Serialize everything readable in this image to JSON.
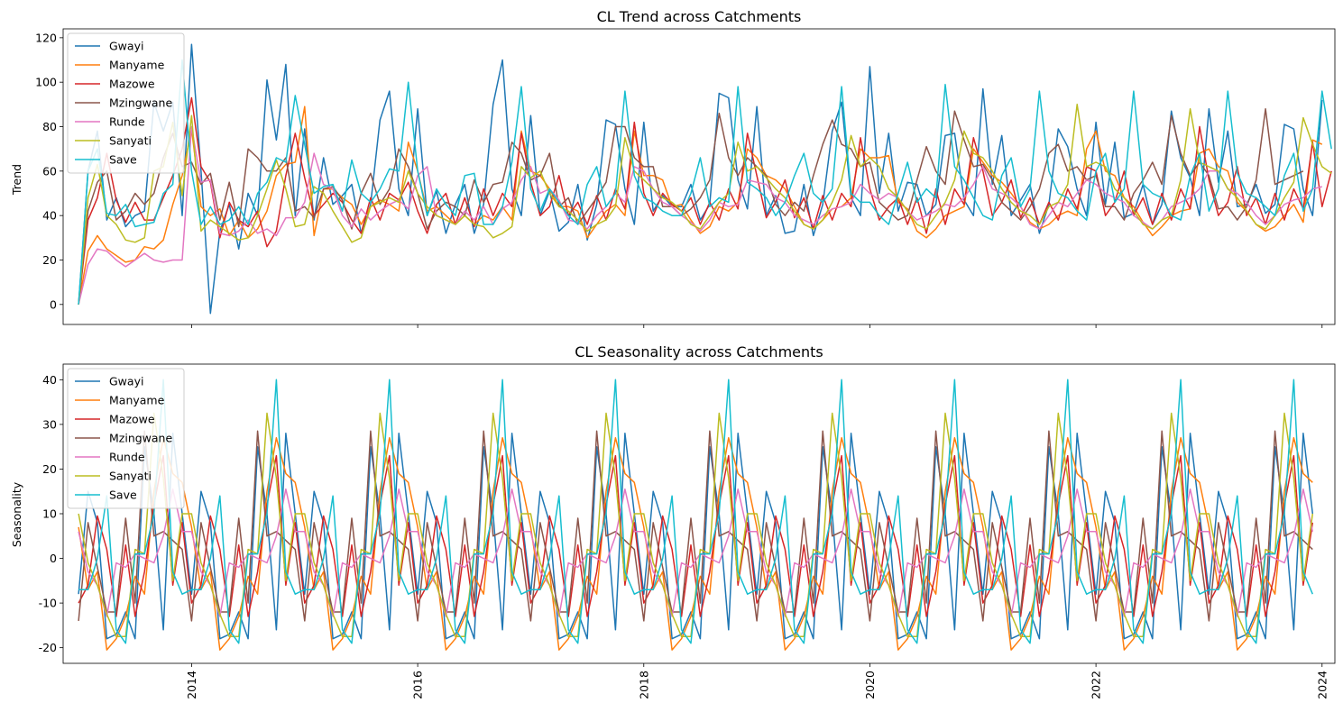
{
  "chart_data": [
    {
      "type": "line",
      "title": "CL Trend across Catchments",
      "xlabel": "",
      "ylabel": "Trend",
      "xlim": [
        "2012-11-12",
        "2024-02-12"
      ],
      "ylim": [
        -9,
        124
      ],
      "yticks": [
        0,
        20,
        40,
        60,
        80,
        100,
        120
      ],
      "xticks": [
        "2014",
        "2016",
        "2018",
        "2020",
        "2022",
        "2024"
      ],
      "x_start": "2013-01",
      "x_frequency": "monthly",
      "legend_position": "top-left",
      "series": [
        {
          "name": "Gwayi",
          "color": "#1f77b4",
          "values": [
            0,
            60,
            78,
            38,
            48,
            35,
            40,
            42,
            91,
            78,
            91,
            40,
            117,
            60,
            -4,
            33,
            45,
            25,
            50,
            40,
            101,
            74,
            108,
            40,
            79,
            38,
            66,
            45,
            49,
            54,
            32,
            45,
            83,
            96,
            52,
            40,
            88,
            40,
            51,
            32,
            45,
            54,
            32,
            45,
            90,
            110,
            52,
            40,
            85,
            40,
            51,
            33,
            37,
            54,
            29,
            45,
            83,
            81,
            52,
            36,
            82,
            42,
            49,
            44,
            44,
            54,
            38,
            45,
            95,
            93,
            56,
            43,
            89,
            40,
            49,
            32,
            33,
            54,
            31,
            45,
            78,
            91,
            48,
            40,
            107,
            50,
            77,
            42,
            55,
            54,
            40,
            45,
            76,
            77,
            47,
            40,
            97,
            54,
            76,
            40,
            47,
            54,
            32,
            45,
            79,
            71,
            52,
            40,
            82,
            45,
            73,
            39,
            41,
            54,
            36,
            45,
            87,
            66,
            57,
            40,
            88,
            55,
            78,
            44,
            45,
            54,
            41,
            45,
            81,
            79,
            52,
            40,
            92
          ]
        },
        {
          "name": "Manyame",
          "color": "#ff7f0e",
          "values": [
            0,
            24,
            31,
            25,
            22,
            19,
            20,
            26,
            25,
            29,
            45,
            58,
            79,
            44,
            40,
            43,
            31,
            38,
            30,
            34,
            42,
            58,
            63,
            64,
            89,
            31,
            52,
            52,
            48,
            45,
            36,
            44,
            47,
            45,
            42,
            73,
            60,
            42,
            44,
            40,
            36,
            40,
            36,
            40,
            38,
            44,
            38,
            78,
            60,
            58,
            52,
            44,
            44,
            42,
            30,
            36,
            42,
            45,
            40,
            78,
            58,
            58,
            56,
            44,
            45,
            38,
            32,
            35,
            44,
            42,
            46,
            70,
            66,
            58,
            56,
            52,
            44,
            36,
            34,
            38,
            43,
            44,
            48,
            70,
            66,
            66,
            67,
            46,
            43,
            33,
            30,
            34,
            40,
            42,
            44,
            70,
            64,
            58,
            55,
            50,
            44,
            37,
            34,
            36,
            40,
            42,
            40,
            70,
            78,
            60,
            58,
            48,
            44,
            37,
            31,
            35,
            40,
            42,
            43,
            68,
            70,
            62,
            60,
            46,
            42,
            36,
            33,
            35,
            40,
            45,
            37,
            74,
            72
          ]
        },
        {
          "name": "Mazowe",
          "color": "#d62728",
          "values": [
            0,
            38,
            48,
            68,
            47,
            37,
            46,
            38,
            38,
            48,
            58,
            70,
            93,
            62,
            55,
            30,
            46,
            38,
            35,
            42,
            26,
            33,
            58,
            77,
            57,
            40,
            45,
            50,
            46,
            38,
            32,
            48,
            38,
            50,
            47,
            55,
            42,
            32,
            45,
            50,
            36,
            48,
            35,
            52,
            40,
            50,
            44,
            77,
            55,
            40,
            44,
            58,
            40,
            46,
            36,
            49,
            38,
            52,
            43,
            82,
            50,
            40,
            50,
            45,
            42,
            48,
            36,
            46,
            38,
            52,
            43,
            77,
            58,
            39,
            46,
            56,
            39,
            48,
            34,
            49,
            38,
            50,
            44,
            75,
            52,
            38,
            44,
            48,
            36,
            48,
            32,
            52,
            36,
            52,
            45,
            75,
            60,
            40,
            46,
            56,
            39,
            48,
            36,
            46,
            38,
            52,
            43,
            62,
            60,
            40,
            46,
            60,
            40,
            48,
            36,
            50,
            38,
            52,
            43,
            80,
            56,
            40,
            46,
            62,
            40,
            48,
            36,
            50,
            38,
            52,
            43,
            73,
            44,
            60
          ]
        },
        {
          "name": "Mzingwane",
          "color": "#8c564b",
          "values": [
            0,
            42,
            55,
            60,
            38,
            42,
            50,
            45,
            50,
            66,
            77,
            62,
            64,
            54,
            59,
            38,
            55,
            35,
            70,
            66,
            60,
            60,
            66,
            42,
            44,
            39,
            52,
            53,
            47,
            34,
            50,
            59,
            45,
            52,
            70,
            62,
            50,
            34,
            42,
            46,
            44,
            40,
            56,
            46,
            54,
            55,
            73,
            68,
            56,
            58,
            68,
            44,
            48,
            36,
            42,
            48,
            55,
            80,
            80,
            66,
            62,
            62,
            44,
            44,
            40,
            43,
            48,
            56,
            86,
            66,
            58,
            66,
            62,
            58,
            45,
            40,
            46,
            42,
            58,
            72,
            83,
            72,
            70,
            62,
            64,
            46,
            42,
            38,
            40,
            56,
            71,
            60,
            54,
            87,
            74,
            62,
            63,
            56,
            46,
            42,
            38,
            44,
            52,
            68,
            72,
            60,
            62,
            56,
            58,
            44,
            44,
            38,
            50,
            56,
            64,
            54,
            85,
            68,
            58,
            64,
            58,
            43,
            44,
            38,
            44,
            56,
            88,
            54,
            56,
            58,
            60
          ]
        },
        {
          "name": "Runde",
          "color": "#e377c2",
          "values": [
            0,
            18,
            25,
            24,
            20,
            17,
            20,
            23,
            20,
            19,
            20,
            20,
            80,
            55,
            56,
            32,
            31,
            33,
            38,
            32,
            34,
            31,
            39,
            39,
            46,
            68,
            54,
            52,
            40,
            35,
            43,
            38,
            42,
            45,
            47,
            43,
            58,
            62,
            40,
            38,
            36,
            42,
            38,
            44,
            36,
            43,
            46,
            56,
            62,
            50,
            52,
            47,
            38,
            37,
            34,
            40,
            44,
            50,
            46,
            62,
            60,
            52,
            46,
            44,
            40,
            37,
            33,
            38,
            46,
            44,
            45,
            56,
            55,
            54,
            48,
            46,
            40,
            38,
            36,
            40,
            43,
            44,
            46,
            54,
            50,
            47,
            50,
            48,
            42,
            38,
            40,
            42,
            45,
            44,
            48,
            54,
            62,
            52,
            50,
            48,
            44,
            36,
            34,
            40,
            46,
            44,
            50,
            56,
            54,
            50,
            48,
            46,
            40,
            37,
            34,
            38,
            44,
            46,
            48,
            52,
            60,
            60,
            52,
            50,
            46,
            40,
            36,
            40,
            45,
            47,
            48,
            52,
            53
          ]
        },
        {
          "name": "Sanyati",
          "color": "#bcbd22",
          "values": [
            0,
            48,
            63,
            40,
            36,
            29,
            28,
            30,
            60,
            62,
            82,
            49,
            85,
            33,
            38,
            35,
            32,
            29,
            30,
            40,
            52,
            65,
            52,
            35,
            36,
            53,
            50,
            42,
            35,
            28,
            30,
            44,
            46,
            48,
            46,
            60,
            50,
            44,
            40,
            38,
            36,
            40,
            36,
            35,
            30,
            32,
            35,
            62,
            57,
            60,
            50,
            44,
            42,
            38,
            33,
            36,
            38,
            44,
            75,
            60,
            56,
            52,
            48,
            46,
            42,
            36,
            34,
            40,
            46,
            50,
            73,
            60,
            62,
            57,
            52,
            48,
            42,
            36,
            34,
            38,
            46,
            56,
            76,
            62,
            66,
            62,
            52,
            48,
            42,
            36,
            34,
            40,
            46,
            56,
            78,
            68,
            66,
            60,
            52,
            46,
            42,
            40,
            36,
            44,
            46,
            54,
            90,
            62,
            64,
            62,
            52,
            48,
            42,
            36,
            34,
            38,
            40,
            56,
            88,
            64,
            62,
            60,
            52,
            48,
            42,
            36,
            34,
            40,
            48,
            55,
            84,
            72,
            62,
            59
          ]
        },
        {
          "name": "Save",
          "color": "#17becf",
          "values": [
            0,
            60,
            70,
            41,
            40,
            45,
            35,
            36,
            37,
            50,
            54,
            110,
            60,
            36,
            44,
            36,
            38,
            44,
            36,
            50,
            55,
            66,
            64,
            94,
            72,
            50,
            53,
            54,
            42,
            65,
            50,
            46,
            52,
            61,
            60,
            100,
            60,
            40,
            52,
            45,
            40,
            58,
            59,
            36,
            36,
            44,
            64,
            98,
            52,
            42,
            52,
            46,
            40,
            36,
            54,
            62,
            44,
            50,
            96,
            58,
            48,
            46,
            42,
            40,
            40,
            50,
            66,
            44,
            48,
            46,
            98,
            55,
            52,
            48,
            40,
            46,
            58,
            68,
            50,
            46,
            52,
            98,
            50,
            46,
            46,
            40,
            36,
            50,
            64,
            46,
            52,
            48,
            99,
            62,
            56,
            48,
            40,
            38,
            58,
            66,
            44,
            52,
            96,
            60,
            50,
            48,
            42,
            38,
            60,
            68,
            46,
            52,
            96,
            54,
            50,
            48,
            40,
            38,
            58,
            68,
            42,
            52,
            96,
            59,
            50,
            48,
            44,
            40,
            58,
            68,
            42,
            52,
            96,
            70
          ]
        }
      ]
    },
    {
      "type": "line",
      "title": "CL Seasonality across Catchments",
      "xlabel": "",
      "ylabel": "Seasonality",
      "xlim": [
        "2012-11-12",
        "2024-02-12"
      ],
      "ylim": [
        -23.5,
        43.5
      ],
      "yticks": [
        -20,
        -10,
        0,
        10,
        20,
        30,
        40
      ],
      "xticks": [
        "2014",
        "2016",
        "2018",
        "2020",
        "2022",
        "2024"
      ],
      "x_start": "2013-01",
      "x_frequency": "monthly",
      "legend_position": "top-left",
      "series": [
        {
          "name": "Gwayi",
          "color": "#1f77b4",
          "pattern": [
            -8,
            15,
            8,
            -18,
            -17,
            -12,
            -18,
            25,
            10,
            -16,
            28,
            10
          ]
        },
        {
          "name": "Manyame",
          "color": "#ff7f0e",
          "pattern": [
            7,
            -7,
            -3,
            -20.5,
            -18,
            -13,
            -4,
            -8,
            15,
            27,
            19,
            17
          ]
        },
        {
          "name": "Mazowe",
          "color": "#d62728",
          "pattern": [
            -10,
            -6,
            9.5,
            2,
            -13,
            3,
            -13,
            -3,
            12,
            23,
            -6,
            8
          ]
        },
        {
          "name": "Mzingwane",
          "color": "#8c564b",
          "pattern": [
            -14,
            8,
            -2,
            -12,
            -12,
            9,
            -10,
            28.5,
            5,
            6,
            4,
            2
          ]
        },
        {
          "name": "Runde",
          "color": "#e377c2",
          "pattern": [
            6,
            -3,
            -6,
            -13,
            -1,
            -2,
            1,
            0,
            -1,
            5,
            15.5,
            6
          ]
        },
        {
          "name": "Sanyati",
          "color": "#bcbd22",
          "pattern": [
            10,
            -1,
            -6,
            -12.5,
            -17.5,
            -17.5,
            2,
            1,
            32.5,
            18,
            -5,
            10
          ]
        },
        {
          "name": "Save",
          "color": "#17becf",
          "pattern": [
            -7,
            -7,
            0,
            14,
            -16,
            -19,
            1,
            1,
            10,
            40,
            -3,
            -8
          ]
        }
      ]
    }
  ]
}
